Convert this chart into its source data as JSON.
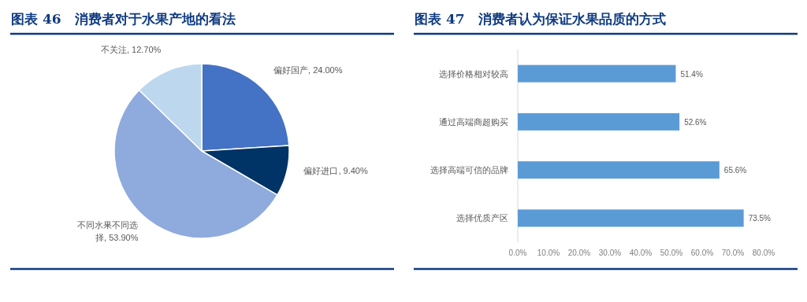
{
  "chart_data": [
    {
      "type": "pie",
      "title": "图表 46　消费者对于水果产地的看法",
      "categories": [
        "偏好国产",
        "偏好进口",
        "不同水果不同选择",
        "不关注"
      ],
      "values": [
        24.0,
        9.4,
        53.9,
        12.7
      ],
      "colors": [
        "#4472c4",
        "#003366",
        "#8faadc",
        "#bdd7ee"
      ],
      "value_labels": [
        "24.00%",
        "9.40%",
        "53.90%",
        "12.70%"
      ]
    },
    {
      "type": "bar",
      "orientation": "horizontal",
      "title": "图表 47　消费者认为保证水果品质的方式",
      "categories": [
        "选择价格相对较高",
        "通过高端商超购买",
        "选择高端可信的品牌",
        "选择优质产区"
      ],
      "values": [
        51.4,
        52.6,
        65.6,
        73.5
      ],
      "color": "#5b9bd5",
      "value_labels": [
        "51.4%",
        "52.6%",
        "65.6%",
        "73.5%"
      ],
      "xlim": [
        0,
        80
      ],
      "xticks": [
        {
          "value": 0,
          "label": "0.0%"
        },
        {
          "value": 10,
          "label": "10.0%"
        },
        {
          "value": 20,
          "label": "20.0%"
        },
        {
          "value": 30,
          "label": "30.0%"
        },
        {
          "value": 40,
          "label": "40.0%"
        },
        {
          "value": 50,
          "label": "50.0%"
        },
        {
          "value": 60,
          "label": "60.0%"
        },
        {
          "value": 70,
          "label": "70.0%"
        },
        {
          "value": 80,
          "label": "80.0%"
        }
      ]
    }
  ]
}
